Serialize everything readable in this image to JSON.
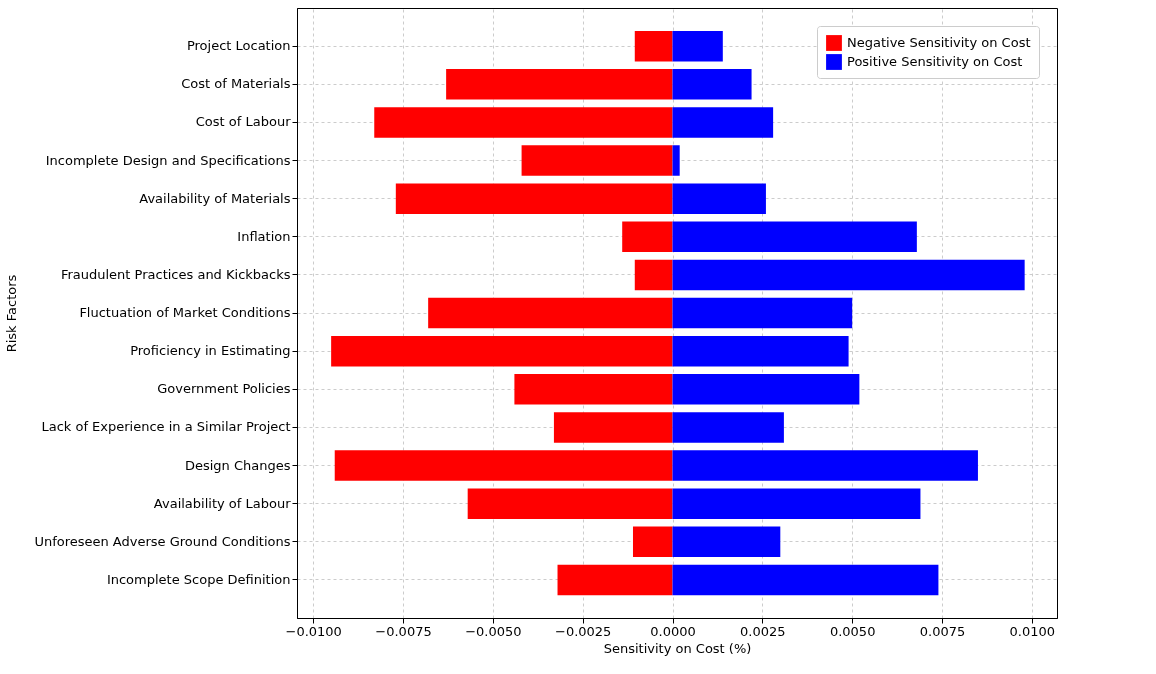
{
  "chart_data": {
    "type": "bar",
    "orientation": "horizontal",
    "xlabel": "Sensitivity on Cost (%)",
    "ylabel": "Risk Factors",
    "categories": [
      "Project Location",
      "Cost of Materials",
      "Cost of Labour",
      "Incomplete Design and Specifications",
      "Availability of Materials",
      "Inflation",
      "Fraudulent Practices and Kickbacks",
      "Fluctuation of Market Conditions",
      "Proficiency in Estimating",
      "Government Policies",
      "Lack of Experience in a Similar Project",
      "Design Changes",
      "Availability of Labour",
      "Unforeseen Adverse Ground Conditions",
      "Incomplete Scope Definition"
    ],
    "series": [
      {
        "name": "Negative Sensitivity on Cost",
        "color": "#ff0000",
        "values": [
          -0.00105,
          -0.0063,
          -0.0083,
          -0.0042,
          -0.0077,
          -0.0014,
          -0.00105,
          -0.0068,
          -0.0095,
          -0.0044,
          -0.0033,
          -0.0094,
          -0.0057,
          -0.0011,
          -0.0032
        ]
      },
      {
        "name": "Positive Sensitivity on Cost",
        "color": "#0000ff",
        "values": [
          0.0014,
          0.0022,
          0.0028,
          0.0002,
          0.0026,
          0.0068,
          0.0098,
          0.005,
          0.0049,
          0.0052,
          0.0031,
          0.0085,
          0.0069,
          0.003,
          0.0074
        ]
      }
    ],
    "xlim": [
      -0.01045,
      0.0107
    ],
    "xticks": [
      {
        "value": -0.01,
        "label": "−0.0100"
      },
      {
        "value": -0.0075,
        "label": "−0.0075"
      },
      {
        "value": -0.005,
        "label": "−0.0050"
      },
      {
        "value": -0.0025,
        "label": "−0.0025"
      },
      {
        "value": 0,
        "label": "0.0000"
      },
      {
        "value": 0.0025,
        "label": "0.0025"
      },
      {
        "value": 0.005,
        "label": "0.0050"
      },
      {
        "value": 0.0075,
        "label": "0.0075"
      },
      {
        "value": 0.01,
        "label": "0.0100"
      }
    ],
    "grid": true,
    "legend": "top right",
    "stacked": true
  }
}
